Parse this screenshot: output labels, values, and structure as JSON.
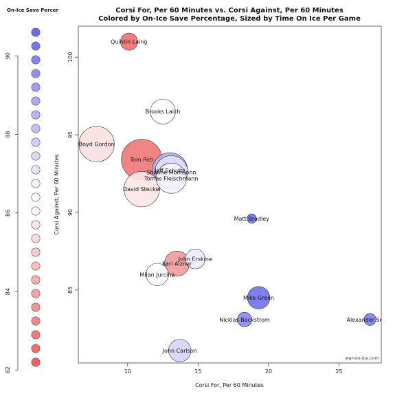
{
  "chart_data": {
    "type": "scatter",
    "title": "Corsi For, Per 60 Minutes vs. Corsi Against, Per 60 Minutes",
    "subtitle": "Colored by On-Ice Save Percentage, Sized by Time On Ice Per Game",
    "xlabel": "Corsi For, Per 60 Minutes",
    "ylabel": "Corsi Against, Per 60 Minutes",
    "xlim": [
      6.5,
      28
    ],
    "ylim": [
      80.3,
      102
    ],
    "x_ticks": [
      10,
      15,
      20,
      25
    ],
    "y_ticks": [
      85,
      90,
      95,
      100
    ],
    "credit": "war-on-ice.com",
    "legend": {
      "title": "On-Ice Save Percer",
      "ticks": [
        82,
        84,
        86,
        88,
        90
      ],
      "range": [
        82.2,
        90.6
      ],
      "count": 25
    },
    "colors": {
      "high": "#6b6bea",
      "mid": "#ffffff",
      "low": "#ef6060",
      "stroke": "#333333"
    },
    "points": [
      {
        "label": "Quintin Laing",
        "x": 10.1,
        "y": 101.0,
        "color": "#f07070",
        "size": 5
      },
      {
        "label": "Brooks Laich",
        "x": 12.5,
        "y": 96.5,
        "color": "#ffffff",
        "size": 8
      },
      {
        "label": "Boyd Gordon",
        "x": 7.8,
        "y": 94.4,
        "color": "#fbe0e0",
        "size": 12
      },
      {
        "label": "Tom Poti",
        "x": 11.0,
        "y": 93.4,
        "color": "#f07878",
        "size": 14
      },
      {
        "label": "Jeff Schultz",
        "x": 13.0,
        "y": 92.7,
        "color": "#b0b0f0",
        "size": 12
      },
      {
        "label": "Shaone Morrisonn",
        "x": 13.1,
        "y": 92.6,
        "color": "#e0e0fb",
        "size": 11
      },
      {
        "label": "Tomas Fleischmann",
        "x": 13.1,
        "y": 92.2,
        "color": "#f4f4fd",
        "size": 10
      },
      {
        "label": "David Steckel",
        "x": 11.0,
        "y": 91.5,
        "color": "#fde6e6",
        "size": 12
      },
      {
        "label": "Matt Bradley",
        "x": 18.8,
        "y": 89.6,
        "color": "#7070ea",
        "size": 2
      },
      {
        "label": "John Erskine",
        "x": 14.8,
        "y": 87.0,
        "color": "#ececfc",
        "size": 6
      },
      {
        "label": "Karl Alzner",
        "x": 13.5,
        "y": 86.7,
        "color": "#f29a9a",
        "size": 8
      },
      {
        "label": "Milan Jurcina",
        "x": 12.1,
        "y": 86.0,
        "color": "#ffffff",
        "size": 7
      },
      {
        "label": "Mike Green",
        "x": 19.3,
        "y": 84.5,
        "color": "#7272ea",
        "size": 7
      },
      {
        "label": "Nicklas Backstrom",
        "x": 18.3,
        "y": 83.1,
        "color": "#8a8aee",
        "size": 4
      },
      {
        "label": "Alexander Semin",
        "x": 27.2,
        "y": 83.1,
        "color": "#8080ec",
        "size": 3
      },
      {
        "label": "John Carlson",
        "x": 13.7,
        "y": 81.1,
        "color": "#d4d4f8",
        "size": 7
      }
    ]
  }
}
